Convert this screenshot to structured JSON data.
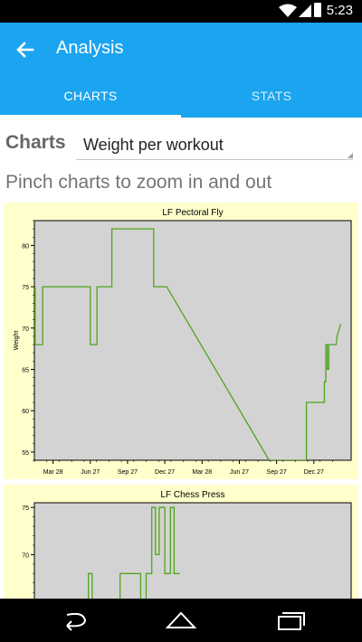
{
  "status_bar": {
    "time": "5:23"
  },
  "app_bar": {
    "title": "Analysis",
    "back_icon": "arrow-back-icon"
  },
  "tabs": [
    {
      "label": "CHARTS",
      "selected": true
    },
    {
      "label": "STATS",
      "selected": false
    }
  ],
  "controls": {
    "charts_label": "Charts",
    "chart_selector_value": "Weight per workout",
    "hint": "Pinch charts to zoom in and out"
  },
  "colors": {
    "accent": "#1ba4f0",
    "line": "#4fa51a",
    "plot_bg": "#d3d3d3",
    "card_bg": "#ffffcc"
  },
  "chart_data": [
    {
      "type": "line",
      "title": "LF Pectoral Fly",
      "xlabel": "",
      "ylabel": "Weight",
      "x_ticks": [
        "Mar 28",
        "Jun 27",
        "Sep 27",
        "Dec 27",
        "Mar 28",
        "Jun 27",
        "Sep 27",
        "Dec 27"
      ],
      "y_ticks": [
        55,
        60,
        65,
        70,
        75,
        80
      ],
      "xlim": [
        0,
        8.5
      ],
      "ylim": [
        54,
        83
      ],
      "grid": false,
      "series": [
        {
          "x": [
            -0.05,
            0.02,
            0.02,
            0.22,
            0.22,
            1.5,
            1.5,
            1.68,
            1.68,
            1.9,
            1.9,
            2.08,
            2.08,
            3.2,
            3.2,
            3.55,
            6.3,
            7.3,
            7.3,
            7.46,
            7.46,
            7.78,
            7.78,
            7.82,
            7.82,
            7.86,
            7.86,
            7.9,
            7.9,
            7.97,
            7.97,
            8.1,
            8.12,
            8.22
          ],
          "y": [
            75,
            75,
            68,
            68,
            75,
            75,
            68,
            68,
            75,
            75,
            75,
            75,
            82,
            82,
            75,
            75,
            54,
            54,
            61,
            61,
            61,
            61,
            63.5,
            63.5,
            68,
            68,
            65,
            65,
            68,
            68,
            68,
            68,
            69,
            70.5
          ]
        }
      ]
    },
    {
      "type": "line",
      "title": "LF Chess Press",
      "xlabel": "",
      "ylabel": "",
      "x_ticks": [],
      "y_ticks": [
        65,
        70,
        75
      ],
      "xlim": [
        0,
        8.5
      ],
      "ylim": [
        64,
        75.5
      ],
      "grid": false,
      "series": [
        {
          "x": [
            1.45,
            1.45,
            1.55,
            1.55,
            2.3,
            2.3,
            2.85,
            2.85,
            3.0,
            3.0,
            3.15,
            3.15,
            3.25,
            3.25,
            3.35,
            3.35,
            3.5,
            3.5,
            3.65,
            3.65,
            3.75,
            3.75,
            3.9
          ],
          "y": [
            64,
            68,
            68,
            64,
            64,
            68,
            68,
            64,
            64,
            68,
            68,
            75,
            75,
            70,
            70,
            75,
            75,
            68,
            68,
            75,
            75,
            68,
            68
          ]
        }
      ]
    }
  ]
}
